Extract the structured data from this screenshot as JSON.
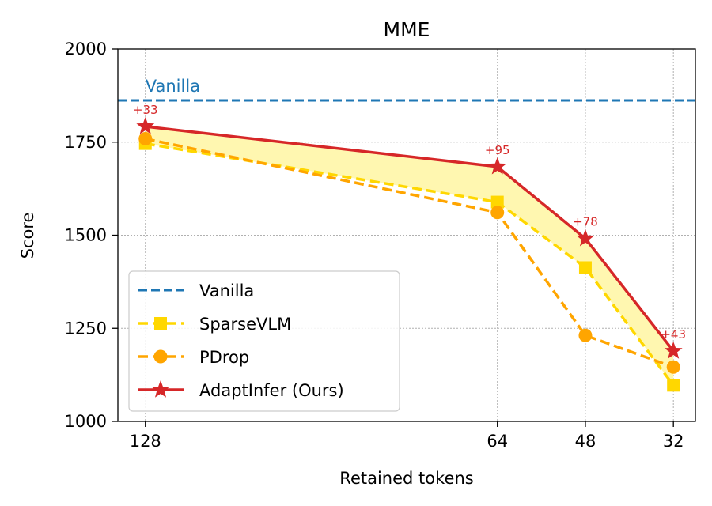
{
  "chart_data": {
    "type": "line",
    "title": "MME",
    "xlabel": "Retained tokens",
    "ylabel": "Score",
    "categories": [
      "128",
      "64",
      "48",
      "32"
    ],
    "x_positions": [
      128,
      64,
      48,
      32
    ],
    "xlim": [
      133,
      28
    ],
    "ylim": [
      1000,
      2000
    ],
    "yticks": [
      1000,
      1250,
      1500,
      1750,
      2000
    ],
    "grid": true,
    "legend_position": "lower-left",
    "baseline": {
      "name": "Vanilla",
      "value": 1862,
      "label": "Vanilla",
      "color": "#1f77b4",
      "style": "dashed"
    },
    "series": [
      {
        "name": "SparseVLM",
        "values": [
          1746,
          1589,
          1413,
          1097
        ],
        "color": "#ffd700",
        "marker": "square",
        "style": "dashed"
      },
      {
        "name": "PDrop",
        "values": [
          1759,
          1561,
          1231,
          1146
        ],
        "color": "#ffa500",
        "marker": "circle",
        "style": "dashed"
      },
      {
        "name": "AdaptInfer (Ours)",
        "values": [
          1792,
          1684,
          1491,
          1189
        ],
        "color": "#d62728",
        "marker": "star",
        "style": "solid"
      }
    ],
    "annotations": [
      "+33",
      "+95",
      "+78",
      "+43"
    ],
    "fill_between": {
      "between": [
        "SparseVLM",
        "AdaptInfer (Ours)"
      ],
      "color": "#fff7b0"
    }
  }
}
